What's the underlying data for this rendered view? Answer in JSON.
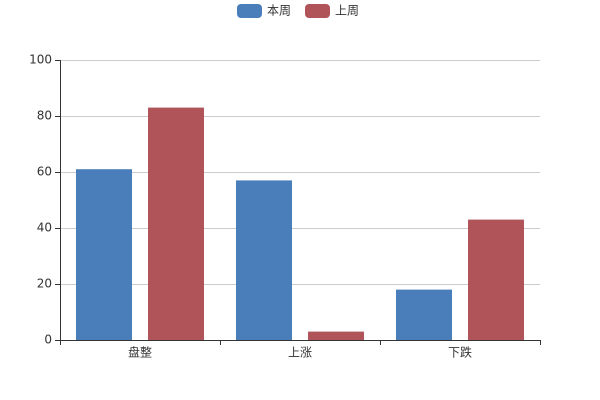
{
  "chart_data": {
    "type": "bar",
    "categories": [
      "盘整",
      "上涨",
      "下跌"
    ],
    "series": [
      {
        "name": "本周",
        "color": "#4a7ebb",
        "values": [
          61,
          57,
          18
        ]
      },
      {
        "name": "上周",
        "color": "#b0545a",
        "values": [
          83,
          3,
          43
        ]
      }
    ],
    "ylim": [
      0,
      100
    ],
    "yticks": [
      0,
      20,
      40,
      60,
      80,
      100
    ],
    "grid": true,
    "legend": "top"
  }
}
